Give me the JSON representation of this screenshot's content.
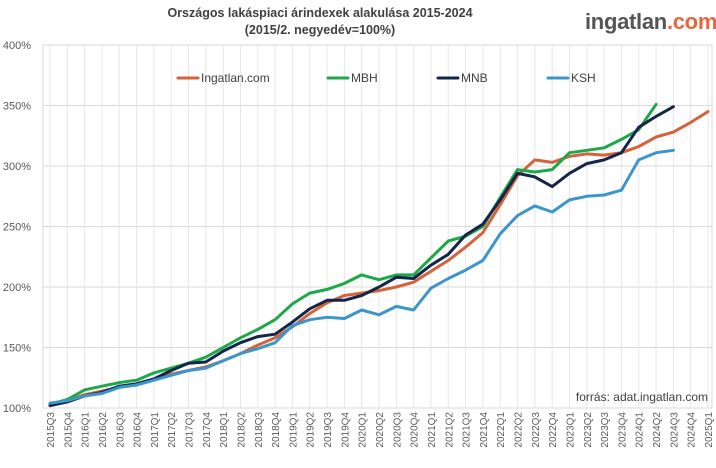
{
  "header": {
    "title_line1": "Országos lakáspiaci árindexek alakulása 2015-2024",
    "title_line2": "(2015/2. negyedév=100%)"
  },
  "logo": {
    "part1": "ingatlan",
    "part2": ".com"
  },
  "source": "forrás: adat.ingatlan.com",
  "chart_data": {
    "type": "line",
    "title": "Országos lakáspiaci árindexek alakulása 2015-2024",
    "subtitle": "(2015/2. negyedév=100%)",
    "xlabel": "",
    "ylabel": "",
    "ylim": [
      100,
      400
    ],
    "y_ticks": [
      100,
      150,
      200,
      250,
      300,
      350,
      400
    ],
    "y_tick_labels": [
      "100%",
      "150%",
      "200%",
      "250%",
      "300%",
      "350%",
      "400%"
    ],
    "grid": true,
    "legend_position": "top",
    "categories": [
      "2015Q3",
      "2015Q4",
      "2016Q1",
      "2016Q2",
      "2016Q3",
      "2016Q4",
      "2017Q1",
      "2017Q2",
      "2017Q3",
      "2017Q4",
      "2018Q1",
      "2018Q2",
      "2018Q3",
      "2018Q4",
      "2019Q1",
      "2019Q2",
      "2019Q3",
      "2019Q4",
      "2020Q1",
      "2020Q2",
      "2020Q3",
      "2020Q4",
      "2021Q1",
      "2021Q2",
      "2021Q3",
      "2021Q4",
      "2022Q1",
      "2022Q2",
      "2022Q3",
      "2022Q4",
      "2023Q1",
      "2023Q2",
      "2023Q3",
      "2023Q4",
      "2024Q1",
      "2024Q2",
      "2024Q3",
      "2024Q4",
      "2025Q1"
    ],
    "series": [
      {
        "name": "Ingatlan.com",
        "color": "#d4623a",
        "values": [
          104,
          106,
          111,
          114,
          117,
          120,
          124,
          128,
          131,
          134,
          139,
          145,
          152,
          158,
          167,
          178,
          187,
          193,
          195,
          197,
          200,
          204,
          213,
          222,
          233,
          245,
          268,
          292,
          305,
          303,
          308,
          310,
          309,
          311,
          316,
          324,
          328,
          336,
          345
        ]
      },
      {
        "name": "MBH",
        "color": "#1fa84a",
        "values": [
          103,
          107,
          115,
          118,
          121,
          123,
          129,
          133,
          137,
          142,
          150,
          158,
          165,
          173,
          186,
          195,
          198,
          203,
          210,
          206,
          210,
          210,
          224,
          238,
          242,
          250,
          274,
          297,
          295,
          297,
          311,
          313,
          315,
          322,
          330,
          351,
          null,
          null,
          null
        ]
      },
      {
        "name": "MNB",
        "color": "#14254a",
        "values": [
          102,
          105,
          110,
          113,
          118,
          120,
          124,
          131,
          137,
          138,
          147,
          154,
          159,
          161,
          171,
          182,
          189,
          189,
          193,
          200,
          208,
          207,
          218,
          227,
          243,
          252,
          272,
          294,
          291,
          283,
          294,
          302,
          305,
          311,
          332,
          341,
          349,
          null,
          null
        ]
      },
      {
        "name": "KSH",
        "color": "#3b96c9",
        "values": [
          104,
          106,
          110,
          112,
          117,
          119,
          123,
          127,
          131,
          133,
          139,
          145,
          149,
          154,
          168,
          173,
          175,
          174,
          181,
          177,
          184,
          181,
          199,
          207,
          214,
          222,
          244,
          259,
          267,
          262,
          272,
          275,
          276,
          280,
          305,
          311,
          313,
          null,
          null
        ]
      }
    ]
  }
}
